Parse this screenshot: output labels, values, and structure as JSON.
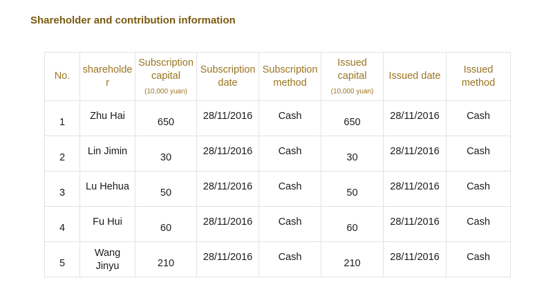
{
  "title": "Shareholder and contribution information",
  "headers": {
    "no": "No.",
    "shareholder_line1": "shareholde",
    "shareholder_line2": "r",
    "subscription_capital_line1": "Subscription",
    "subscription_capital_line2": "capital",
    "subscription_capital_unit": "(10,000 yuan)",
    "subscription_date_line1": "Subscription",
    "subscription_date_line2": "date",
    "subscription_method_line1": "Subscription",
    "subscription_method_line2": "method",
    "issued_capital_line1": "Issued",
    "issued_capital_line2": "capital",
    "issued_capital_unit": "(10,000 yuan)",
    "issued_date": "Issued date",
    "issued_method_line1": "Issued",
    "issued_method_line2": "method"
  },
  "rows": [
    {
      "no": "1",
      "name_line1": "Zhu Hai",
      "name_line2": "",
      "subscription_capital": "650",
      "subscription_date": "28/11/2016",
      "subscription_method": "Cash",
      "issued_capital": "650",
      "issued_date": "28/11/2016",
      "issued_method": "Cash"
    },
    {
      "no": "2",
      "name_line1": "Lin Jimin",
      "name_line2": "",
      "subscription_capital": "30",
      "subscription_date": "28/11/2016",
      "subscription_method": "Cash",
      "issued_capital": "30",
      "issued_date": "28/11/2016",
      "issued_method": "Cash"
    },
    {
      "no": "3",
      "name_line1": "Lu Hehua",
      "name_line2": "",
      "subscription_capital": "50",
      "subscription_date": "28/11/2016",
      "subscription_method": "Cash",
      "issued_capital": "50",
      "issued_date": "28/11/2016",
      "issued_method": "Cash"
    },
    {
      "no": "4",
      "name_line1": "Fu Hui",
      "name_line2": "",
      "subscription_capital": "60",
      "subscription_date": "28/11/2016",
      "subscription_method": "Cash",
      "issued_capital": "60",
      "issued_date": "28/11/2016",
      "issued_method": "Cash"
    },
    {
      "no": "5",
      "name_line1": "Wang",
      "name_line2": "Jinyu",
      "subscription_capital": "210",
      "subscription_date": "28/11/2016",
      "subscription_method": "Cash",
      "issued_capital": "210",
      "issued_date": "28/11/2016",
      "issued_method": "Cash"
    }
  ]
}
